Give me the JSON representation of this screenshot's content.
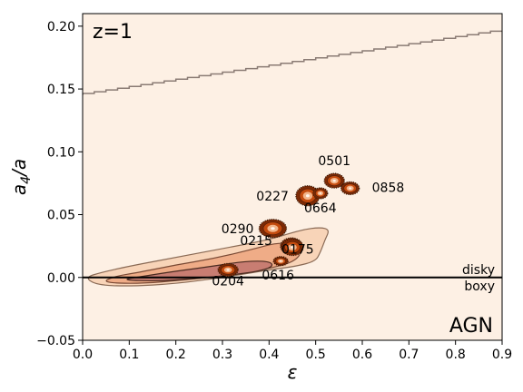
{
  "chart_data": {
    "type": "contour",
    "panel_label": "z=1",
    "corner_label": "AGN",
    "xlabel": "ε",
    "ylabel_main": "a",
    "ylabel_sub": "4",
    "ylabel_tail": "/a",
    "xlim": [
      0.0,
      0.9
    ],
    "ylim": [
      -0.05,
      0.21
    ],
    "xticks": [
      0.0,
      0.1,
      0.2,
      0.3,
      0.4,
      0.5,
      0.6,
      0.7,
      0.8,
      0.9
    ],
    "xtick_labels": [
      "0.0",
      "0.1",
      "0.2",
      "0.3",
      "0.4",
      "0.5",
      "0.6",
      "0.7",
      "0.8",
      "0.9"
    ],
    "yticks": [
      -0.05,
      0.0,
      0.05,
      0.1,
      0.15,
      0.2
    ],
    "ytick_labels": [
      "−0.05",
      "0.00",
      "0.05",
      "0.10",
      "0.15",
      "0.20"
    ],
    "reference_line": {
      "y": 0.0,
      "label_above": "disky",
      "label_below": "boxy"
    },
    "boundary_curve": {
      "x": [
        0.0,
        0.9
      ],
      "y": [
        0.145,
        0.196
      ]
    },
    "colors": {
      "background": "#fdf0e4",
      "outer": "#f8d4b8",
      "middle": "#efac87",
      "inner": "#c87d72",
      "blob_dark": "#7d2a05",
      "blob_mid": "#c44b0e",
      "blob_light": "#f3b58a",
      "contour_line": "#5a3322",
      "boundary": "#8a7b74"
    },
    "objects": [
      {
        "id": "0501",
        "x": 0.54,
        "y": 0.077
      },
      {
        "id": "0858",
        "x": 0.574,
        "y": 0.071
      },
      {
        "id": "0227",
        "x": 0.483,
        "y": 0.065
      },
      {
        "id": "0664",
        "x": 0.51,
        "y": 0.067
      },
      {
        "id": "0290",
        "x": 0.408,
        "y": 0.039
      },
      {
        "id": "0215",
        "x": 0.448,
        "y": 0.025
      },
      {
        "id": "0175",
        "x": 0.45,
        "y": 0.024
      },
      {
        "id": "0616",
        "x": 0.425,
        "y": 0.013
      },
      {
        "id": "0204",
        "x": 0.312,
        "y": 0.006
      }
    ]
  }
}
